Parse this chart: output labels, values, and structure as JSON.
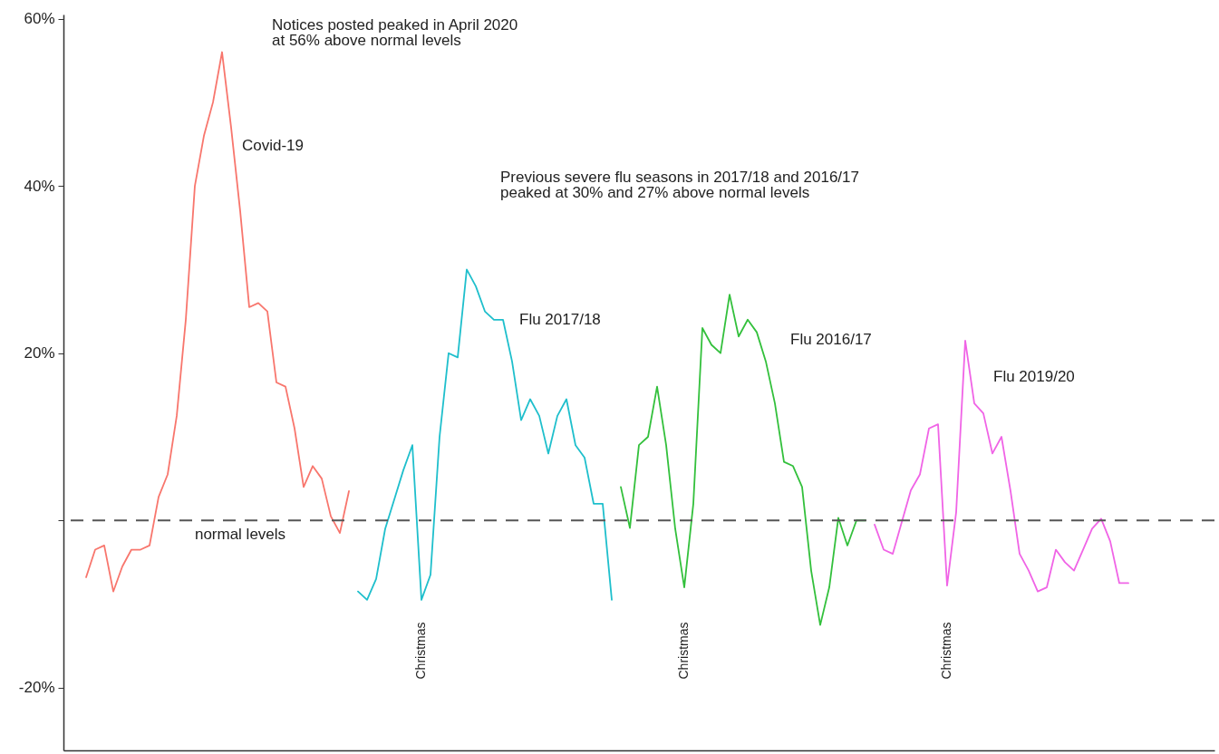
{
  "chart_data": {
    "type": "line",
    "categories": [
      null,
      null,
      null,
      null,
      null,
      null,
      null,
      null,
      null,
      null,
      null,
      null,
      null,
      null,
      null,
      null,
      null,
      null,
      null,
      null,
      null,
      null,
      null,
      null,
      null,
      null,
      null,
      null,
      null,
      null,
      null,
      null,
      null,
      null,
      null,
      null,
      null,
      null,
      null,
      null,
      null,
      null,
      null,
      null,
      null,
      null,
      null,
      null,
      null,
      null,
      null,
      null,
      null,
      null,
      null,
      null,
      null,
      null,
      null,
      null,
      null,
      null,
      null,
      null,
      null,
      null,
      null,
      null,
      null,
      null,
      null,
      null,
      null,
      null,
      null,
      null,
      null,
      null,
      null,
      null,
      null,
      null,
      null,
      null,
      null,
      null,
      null,
      null,
      null,
      null,
      null,
      null,
      null,
      null,
      null,
      null,
      null,
      null,
      null,
      null,
      null,
      null,
      null,
      null,
      null,
      null,
      null,
      null,
      null,
      null,
      null,
      null,
      null,
      null,
      null,
      null,
      null,
      null,
      null,
      null,
      null,
      null,
      null,
      null,
      null,
      null,
      null
    ],
    "series": [
      {
        "name": "Covid-19",
        "color": "#f8766d",
        "values": [
          null,
          null,
          -6.8,
          -3.5,
          -3,
          -8.5,
          -5.5,
          -3.5,
          -3.5,
          -3,
          2.8,
          5.5,
          12.5,
          24,
          40,
          46,
          50,
          56,
          47,
          37,
          25.5,
          26,
          25,
          16.5,
          16,
          11,
          4,
          6.5,
          5,
          0.5,
          -1.5,
          3.5,
          null,
          null,
          null,
          null,
          null,
          null,
          null,
          null,
          null,
          null,
          null,
          null,
          null,
          null,
          null,
          null,
          null,
          null,
          null,
          null,
          null,
          null,
          null,
          null,
          null,
          null,
          null,
          null,
          null,
          null,
          null,
          null,
          null,
          null,
          null,
          null,
          null,
          null,
          null,
          null,
          null,
          null,
          null,
          null,
          null,
          null,
          null,
          null,
          null,
          null,
          null,
          null,
          null,
          null,
          null,
          null,
          null,
          null,
          null,
          null,
          null,
          null,
          null,
          null,
          null,
          null,
          null,
          null,
          null,
          null,
          null,
          null,
          null,
          null,
          null,
          null,
          null,
          null,
          null,
          null,
          null,
          null,
          null,
          null,
          null,
          null,
          null,
          null,
          null,
          null,
          null,
          null,
          null,
          null,
          null
        ]
      },
      {
        "name": "Flu 2017/18",
        "color": "#1fbfcc",
        "values": [
          null,
          null,
          null,
          null,
          null,
          null,
          null,
          null,
          null,
          null,
          null,
          null,
          null,
          null,
          null,
          null,
          null,
          null,
          null,
          null,
          null,
          null,
          null,
          null,
          null,
          null,
          null,
          null,
          null,
          null,
          null,
          null,
          -8.5,
          -9.5,
          -7,
          -1,
          2.5,
          6,
          9,
          -9.5,
          -6.5,
          10,
          20,
          19.5,
          30,
          28,
          25,
          24,
          24,
          19,
          12,
          14.5,
          12.5,
          8,
          12.5,
          14.5,
          9,
          7.5,
          2,
          2,
          -9.5,
          null,
          null,
          null,
          null,
          null,
          null,
          null,
          null,
          null,
          null,
          null,
          null,
          null,
          null,
          null,
          null,
          null,
          null,
          null,
          null,
          null,
          null,
          null,
          null,
          null,
          null,
          null,
          null,
          null,
          null,
          null,
          null,
          null,
          null,
          null,
          null,
          null,
          null,
          null,
          null,
          null,
          null,
          null,
          null,
          null,
          null,
          null,
          null,
          null,
          null,
          null,
          null,
          null,
          null,
          null,
          null,
          null,
          null,
          null,
          null,
          null,
          null,
          null,
          null,
          null,
          null
        ]
      },
      {
        "name": "Flu 2016/17",
        "color": "#33c03c",
        "values": [
          null,
          null,
          null,
          null,
          null,
          null,
          null,
          null,
          null,
          null,
          null,
          null,
          null,
          null,
          null,
          null,
          null,
          null,
          null,
          null,
          null,
          null,
          null,
          null,
          null,
          null,
          null,
          null,
          null,
          null,
          null,
          null,
          null,
          null,
          null,
          null,
          null,
          null,
          null,
          null,
          null,
          null,
          null,
          null,
          null,
          null,
          null,
          null,
          null,
          null,
          null,
          null,
          null,
          null,
          null,
          null,
          null,
          null,
          null,
          null,
          null,
          4,
          -0.9,
          9,
          10,
          16,
          9,
          -1,
          -8,
          2,
          23,
          21,
          20,
          27,
          22,
          24,
          22.5,
          19,
          14,
          7,
          6.5,
          4,
          -6,
          -12.5,
          -8,
          0.3,
          -3,
          0,
          0,
          null,
          null,
          null,
          null,
          null,
          null,
          null,
          null,
          null,
          null,
          null,
          null,
          null,
          null,
          null,
          null,
          null,
          null,
          null,
          null,
          null,
          null,
          null,
          null,
          null,
          null,
          null,
          null,
          null,
          null,
          null,
          null,
          null,
          null,
          null,
          null,
          null,
          null
        ]
      },
      {
        "name": "Flu 2019/20",
        "color": "#f064e6",
        "values": [
          null,
          null,
          null,
          null,
          null,
          null,
          null,
          null,
          null,
          null,
          null,
          null,
          null,
          null,
          null,
          null,
          null,
          null,
          null,
          null,
          null,
          null,
          null,
          null,
          null,
          null,
          null,
          null,
          null,
          null,
          null,
          null,
          null,
          null,
          null,
          null,
          null,
          null,
          null,
          null,
          null,
          null,
          null,
          null,
          null,
          null,
          null,
          null,
          null,
          null,
          null,
          null,
          null,
          null,
          null,
          null,
          null,
          null,
          null,
          null,
          null,
          null,
          null,
          null,
          null,
          null,
          null,
          null,
          null,
          null,
          null,
          null,
          null,
          null,
          null,
          null,
          null,
          null,
          null,
          null,
          null,
          null,
          null,
          null,
          null,
          null,
          null,
          null,
          null,
          -0.5,
          -3.5,
          -4,
          -0.2,
          3.6,
          5.5,
          11,
          11.5,
          -7.8,
          1,
          21.5,
          14,
          12.8,
          8,
          10,
          3.5,
          -4,
          -6,
          -8.5,
          -8,
          -3.5,
          -5,
          -6,
          -3.5,
          -1,
          0.2,
          -2.5,
          -7.5,
          -7.5,
          null,
          null,
          null,
          null,
          null,
          null,
          null,
          null,
          null
        ]
      }
    ],
    "ylim": [
      -27.5,
      60.5
    ],
    "yticks": [
      {
        "value": -20,
        "label": "-20%"
      },
      {
        "value": 0,
        "label": null
      },
      {
        "value": 20,
        "label": "20%"
      },
      {
        "value": 40,
        "label": "40%"
      },
      {
        "value": 60,
        "label": "60%"
      }
    ],
    "tick_labels": "y",
    "ref_lines": [
      {
        "axis": "y",
        "value": 0,
        "label": "normal levels",
        "color": "#555555",
        "line_style": "dashed"
      }
    ],
    "annotations": [
      "Notices posted peaked in April 2020\nat 56% above normal levels",
      "Previous severe flu seasons in 2017/18 and 2016/17\npeaked at 30% and 27% above normal levels",
      "Christmas",
      "Christmas",
      "Christmas"
    ],
    "marker": "none",
    "line_style": "solid"
  }
}
